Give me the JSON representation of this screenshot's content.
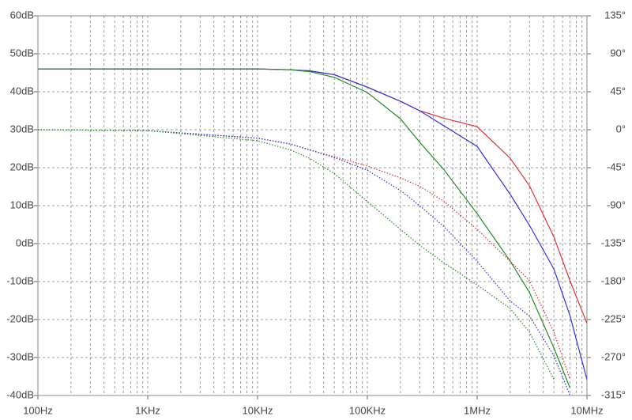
{
  "chart_data": {
    "type": "line",
    "xscale": "log",
    "grid": true,
    "x": [
      100,
      1000,
      10000,
      20000,
      30000,
      50000,
      100000,
      200000,
      300000,
      500000,
      1000000,
      2000000,
      3000000,
      5000000,
      7000000,
      10000000
    ],
    "xlim": [
      100,
      10000000
    ],
    "xticks": [
      {
        "value": 100,
        "label": "100Hz"
      },
      {
        "value": 1000,
        "label": "1KHz"
      },
      {
        "value": 10000,
        "label": "10KHz"
      },
      {
        "value": 100000,
        "label": "100KHz"
      },
      {
        "value": 1000000,
        "label": "1MHz"
      },
      {
        "value": 10000000,
        "label": "10MHz"
      }
    ],
    "xminorticks": [
      200,
      300,
      400,
      500,
      600,
      700,
      800,
      900,
      2000,
      3000,
      4000,
      5000,
      6000,
      7000,
      8000,
      9000,
      20000,
      30000,
      40000,
      50000,
      60000,
      70000,
      80000,
      90000,
      200000,
      300000,
      400000,
      500000,
      600000,
      700000,
      800000,
      900000,
      2000000,
      3000000,
      4000000,
      5000000,
      6000000,
      7000000,
      8000000,
      9000000
    ],
    "ylim": [
      -40,
      60
    ],
    "yticks": [
      {
        "value": 60,
        "label": "60dB"
      },
      {
        "value": 50,
        "label": "50dB"
      },
      {
        "value": 40,
        "label": "40dB"
      },
      {
        "value": 30,
        "label": "30dB"
      },
      {
        "value": 20,
        "label": "20dB"
      },
      {
        "value": 10,
        "label": "10dB"
      },
      {
        "value": 0,
        "label": "0dB"
      },
      {
        "value": -10,
        "label": "-10dB"
      },
      {
        "value": -20,
        "label": "-20dB"
      },
      {
        "value": -30,
        "label": "-30dB"
      },
      {
        "value": -40,
        "label": "-40dB"
      }
    ],
    "y2lim": [
      -315,
      135
    ],
    "y2ticks": [
      {
        "value": 135,
        "label": "135°"
      },
      {
        "value": 90,
        "label": "90°"
      },
      {
        "value": 45,
        "label": "45°"
      },
      {
        "value": 0,
        "label": "0°"
      },
      {
        "value": -45,
        "label": "-45°"
      },
      {
        "value": -90,
        "label": "-90°"
      },
      {
        "value": -135,
        "label": "-135°"
      },
      {
        "value": -180,
        "label": "-180°"
      },
      {
        "value": -225,
        "label": "-225°"
      },
      {
        "value": -270,
        "label": "-270°"
      },
      {
        "value": -315,
        "label": "-315°"
      }
    ],
    "series": [
      {
        "color": "#e03030",
        "style": "solid",
        "values": [
          46,
          46,
          46,
          45.8,
          45.5,
          44.5,
          41.2,
          37.5,
          35,
          33,
          30.8,
          22.5,
          15.2,
          1.7,
          -9.8,
          -21
        ]
      },
      {
        "color": "#3030e0",
        "style": "solid",
        "values": [
          46,
          46,
          46,
          45.8,
          45.5,
          44.5,
          41.2,
          37.5,
          35,
          31,
          25.6,
          13,
          4.8,
          -6.7,
          -19,
          -35.8
        ]
      },
      {
        "color": "#209020",
        "style": "solid",
        "values": [
          46,
          46,
          46,
          45.8,
          45.3,
          43.8,
          39.8,
          32.9,
          26.7,
          19.4,
          7.9,
          -4.6,
          -12.9,
          -27.5,
          -38,
          null
        ]
      },
      {
        "color": "#e03030",
        "style": "dotted",
        "axis": "y2",
        "values": [
          0,
          -1,
          -10,
          -17,
          -24,
          -32,
          -43,
          -57,
          -67,
          -85,
          -118,
          -156,
          -179,
          -240,
          -296,
          null
        ]
      },
      {
        "color": "#3030e0",
        "style": "dotted",
        "axis": "y2",
        "values": [
          0,
          -1,
          -10,
          -17,
          -24,
          -33,
          -48,
          -72,
          -90,
          -115,
          -156,
          -203,
          -221,
          -268,
          -315,
          null
        ]
      },
      {
        "color": "#209020",
        "style": "dotted",
        "axis": "y2",
        "values": [
          0,
          -1,
          -13,
          -24,
          -34,
          -52,
          -85,
          -118,
          -137,
          -158,
          -184,
          -212,
          -240,
          -296,
          null,
          null
        ]
      }
    ]
  }
}
